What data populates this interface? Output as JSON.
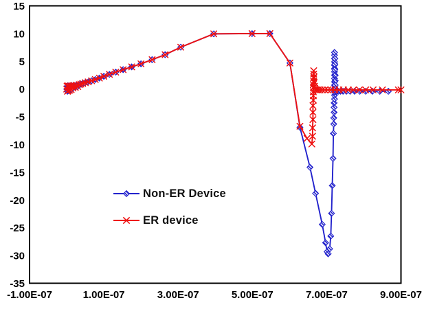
{
  "figure": {
    "background": "#ffffff",
    "plot_border_color": "#000000"
  },
  "chart_data": {
    "type": "line",
    "title": "",
    "xlabel": "",
    "ylabel": "",
    "x_unit": "x values are in units of 1e-07 (axis shown in scientific notation)",
    "xlim": [
      -1,
      9
    ],
    "ylim": [
      -35,
      15
    ],
    "grid": false,
    "legend_position": "inside-left-center",
    "tick_label_color": "#000000",
    "xticks": [
      {
        "value": -1,
        "label": "-1.00E-07"
      },
      {
        "value": 1,
        "label": "1.00E-07"
      },
      {
        "value": 3,
        "label": "3.00E-07"
      },
      {
        "value": 5,
        "label": "5.00E-07"
      },
      {
        "value": 7,
        "label": "7.00E-07"
      },
      {
        "value": 9,
        "label": "9.00E-07"
      }
    ],
    "yticks": [
      {
        "value": 15,
        "label": "15"
      },
      {
        "value": 10,
        "label": "10"
      },
      {
        "value": 5,
        "label": "5"
      },
      {
        "value": 0,
        "label": "0"
      },
      {
        "value": -5,
        "label": "-5"
      },
      {
        "value": -10,
        "label": "-10"
      },
      {
        "value": -15,
        "label": "-15"
      },
      {
        "value": -20,
        "label": "-20"
      },
      {
        "value": -25,
        "label": "-25"
      },
      {
        "value": -30,
        "label": "-30"
      },
      {
        "value": -35,
        "label": "-35"
      }
    ],
    "series": [
      {
        "name": "Non-ER Device",
        "color": "#2222cc",
        "marker": "diamond-hatched",
        "points": [
          [
            0,
            0
          ],
          [
            0.01,
            0.5
          ],
          [
            0.02,
            -0.4
          ],
          [
            0.03,
            0.6
          ],
          [
            0.04,
            -0.3
          ],
          [
            0.06,
            0.5
          ],
          [
            0.08,
            -0.2
          ],
          [
            0.1,
            0.55
          ],
          [
            0.12,
            -0.1
          ],
          [
            0.14,
            0.6
          ],
          [
            0.17,
            0.2
          ],
          [
            0.2,
            0.65
          ],
          [
            0.23,
            0.3
          ],
          [
            0.26,
            0.7
          ],
          [
            0.3,
            0.45
          ],
          [
            0.34,
            0.8
          ],
          [
            0.38,
            0.9
          ],
          [
            0.43,
            1.0
          ],
          [
            0.5,
            1.15
          ],
          [
            0.58,
            1.3
          ],
          [
            0.67,
            1.5
          ],
          [
            0.77,
            1.72
          ],
          [
            0.88,
            1.98
          ],
          [
            1.0,
            2.3
          ],
          [
            1.15,
            2.65
          ],
          [
            1.32,
            3.05
          ],
          [
            1.52,
            3.5
          ],
          [
            1.75,
            4.0
          ],
          [
            2.0,
            4.55
          ],
          [
            2.3,
            5.3
          ],
          [
            2.65,
            6.2
          ],
          [
            3.07,
            7.55
          ],
          [
            3.96,
            9.95
          ],
          [
            4.99,
            10
          ],
          [
            5.47,
            10
          ],
          [
            6.01,
            4.7
          ],
          [
            6.28,
            -6.9
          ],
          [
            6.55,
            -14.1
          ],
          [
            6.7,
            -18.8
          ],
          [
            6.88,
            -24.4
          ],
          [
            6.97,
            -27.7
          ],
          [
            7.01,
            -29.3
          ],
          [
            7.04,
            -29.7
          ],
          [
            7.08,
            -28.8
          ],
          [
            7.11,
            -26.5
          ],
          [
            7.13,
            -22.4
          ],
          [
            7.15,
            -17.4
          ],
          [
            7.17,
            -12.5
          ],
          [
            7.18,
            -8
          ],
          [
            7.19,
            -6.3
          ],
          [
            7.19,
            -5.2
          ],
          [
            7.2,
            -4.2
          ],
          [
            7.2,
            -3.3
          ],
          [
            7.2,
            -2.5
          ],
          [
            7.21,
            -1.8
          ],
          [
            7.21,
            -1.1
          ],
          [
            7.21,
            -0.5
          ],
          [
            7.21,
            0.1
          ],
          [
            7.21,
            0.7
          ],
          [
            7.21,
            1.3
          ],
          [
            7.21,
            1.9
          ],
          [
            7.21,
            2.5
          ],
          [
            7.21,
            3.1
          ],
          [
            7.21,
            3.7
          ],
          [
            7.21,
            4.3
          ],
          [
            7.21,
            4.9
          ],
          [
            7.21,
            5.5
          ],
          [
            7.21,
            6.1
          ],
          [
            7.21,
            6.6
          ],
          [
            7.22,
            5.5
          ],
          [
            7.22,
            4.5
          ],
          [
            7.22,
            3.5
          ],
          [
            7.23,
            2.5
          ],
          [
            7.23,
            1.5
          ],
          [
            7.23,
            0.7
          ],
          [
            7.23,
            0.1
          ],
          [
            7.24,
            -0.35
          ],
          [
            7.27,
            -0.4
          ],
          [
            7.31,
            -0.4
          ],
          [
            7.37,
            -0.4
          ],
          [
            7.44,
            -0.4
          ],
          [
            7.53,
            -0.4
          ],
          [
            7.63,
            -0.4
          ],
          [
            7.75,
            -0.4
          ],
          [
            7.89,
            -0.4
          ],
          [
            8.05,
            -0.4
          ],
          [
            8.23,
            -0.4
          ],
          [
            8.43,
            -0.4
          ],
          [
            8.66,
            -0.4
          ]
        ]
      },
      {
        "name": "ER device",
        "color": "#ee1111",
        "marker": "x-cross",
        "points": [
          [
            0,
            0
          ],
          [
            0.01,
            0.5
          ],
          [
            0.02,
            -0.4
          ],
          [
            0.03,
            0.6
          ],
          [
            0.04,
            -0.3
          ],
          [
            0.06,
            0.5
          ],
          [
            0.08,
            -0.2
          ],
          [
            0.1,
            0.55
          ],
          [
            0.12,
            -0.1
          ],
          [
            0.14,
            0.6
          ],
          [
            0.17,
            0.2
          ],
          [
            0.2,
            0.65
          ],
          [
            0.23,
            0.3
          ],
          [
            0.26,
            0.7
          ],
          [
            0.3,
            0.45
          ],
          [
            0.34,
            0.8
          ],
          [
            0.38,
            0.9
          ],
          [
            0.43,
            1.0
          ],
          [
            0.5,
            1.15
          ],
          [
            0.58,
            1.3
          ],
          [
            0.67,
            1.5
          ],
          [
            0.77,
            1.72
          ],
          [
            0.88,
            1.98
          ],
          [
            1.0,
            2.3
          ],
          [
            1.15,
            2.65
          ],
          [
            1.32,
            3.05
          ],
          [
            1.52,
            3.5
          ],
          [
            1.75,
            4.0
          ],
          [
            2.0,
            4.55
          ],
          [
            2.3,
            5.3
          ],
          [
            2.65,
            6.2
          ],
          [
            3.07,
            7.55
          ],
          [
            3.96,
            9.95
          ],
          [
            4.99,
            10
          ],
          [
            5.47,
            10
          ],
          [
            6.01,
            4.7
          ],
          [
            6.28,
            -6.7
          ],
          [
            6.47,
            -8.9
          ],
          [
            6.6,
            -9.9
          ],
          [
            6.62,
            -8.5
          ],
          [
            6.62,
            -7
          ],
          [
            6.63,
            -5.5
          ],
          [
            6.63,
            -4.2
          ],
          [
            6.63,
            -3
          ],
          [
            6.64,
            -2
          ],
          [
            6.64,
            -1.2
          ],
          [
            6.64,
            -0.5
          ],
          [
            6.64,
            0.2
          ],
          [
            6.64,
            0.8
          ],
          [
            6.65,
            1.4
          ],
          [
            6.65,
            2
          ],
          [
            6.65,
            2.7
          ],
          [
            6.65,
            3.3
          ],
          [
            6.66,
            2.2
          ],
          [
            6.66,
            1.2
          ],
          [
            6.67,
            0.5
          ],
          [
            6.68,
            0.1
          ],
          [
            6.7,
            -0.1
          ],
          [
            6.73,
            -0.15
          ],
          [
            6.77,
            -0.15
          ],
          [
            6.82,
            -0.15
          ],
          [
            6.88,
            -0.15
          ],
          [
            6.95,
            -0.15
          ],
          [
            7.03,
            -0.15
          ],
          [
            7.12,
            -0.15
          ],
          [
            7.22,
            -0.15
          ],
          [
            7.33,
            -0.15
          ],
          [
            7.45,
            -0.15
          ],
          [
            7.58,
            -0.15
          ],
          [
            7.72,
            -0.15
          ],
          [
            7.88,
            -0.15
          ],
          [
            8.05,
            -0.15
          ],
          [
            8.25,
            -0.15
          ],
          [
            8.5,
            -0.15
          ],
          [
            8.93,
            -0.15
          ],
          [
            9,
            -0.15
          ]
        ]
      }
    ]
  }
}
